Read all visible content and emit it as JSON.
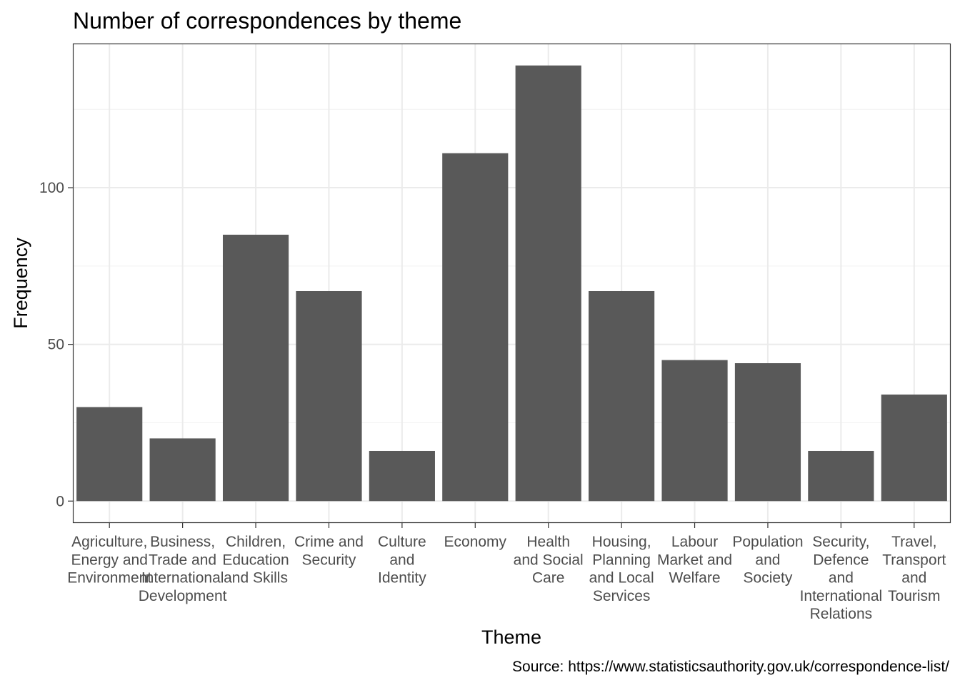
{
  "chart_data": {
    "type": "bar",
    "title": "Number of correspondences by theme",
    "xlabel": "Theme",
    "ylabel": "Frequency",
    "caption": "Source: https://www.statisticsauthority.gov.uk/correspondence-list/",
    "categories": [
      "Agriculture, Energy and Environment",
      "Business, Trade and International Development",
      "Children, Education and Skills",
      "Crime and Security",
      "Culture and Identity",
      "Economy",
      "Health and Social Care",
      "Housing, Planning and Local Services",
      "Labour Market and Welfare",
      "Population and Society",
      "Security, Defence and International Relations",
      "Travel, Transport and Tourism"
    ],
    "category_lines": [
      [
        "Agriculture,",
        "Energy and",
        "Environment"
      ],
      [
        "Business,",
        "Trade and",
        "International",
        "Development"
      ],
      [
        "Children,",
        "Education",
        "and Skills"
      ],
      [
        "Crime and",
        "Security"
      ],
      [
        "Culture",
        "and",
        "Identity"
      ],
      [
        "Economy"
      ],
      [
        "Health",
        "and Social",
        "Care"
      ],
      [
        "Housing,",
        "Planning",
        "and Local",
        "Services"
      ],
      [
        "Labour",
        "Market and",
        "Welfare"
      ],
      [
        "Population",
        "and",
        "Society"
      ],
      [
        "Security,",
        "Defence",
        "and",
        "International",
        "Relations"
      ],
      [
        "Travel,",
        "Transport",
        "and",
        "Tourism"
      ]
    ],
    "values": [
      30,
      20,
      85,
      67,
      16,
      111,
      139,
      67,
      45,
      44,
      16,
      34
    ],
    "ylim": [
      -7,
      146
    ],
    "yticks": [
      0,
      50,
      100
    ],
    "bar_color": "#595959",
    "grid": true,
    "legend": "none"
  }
}
